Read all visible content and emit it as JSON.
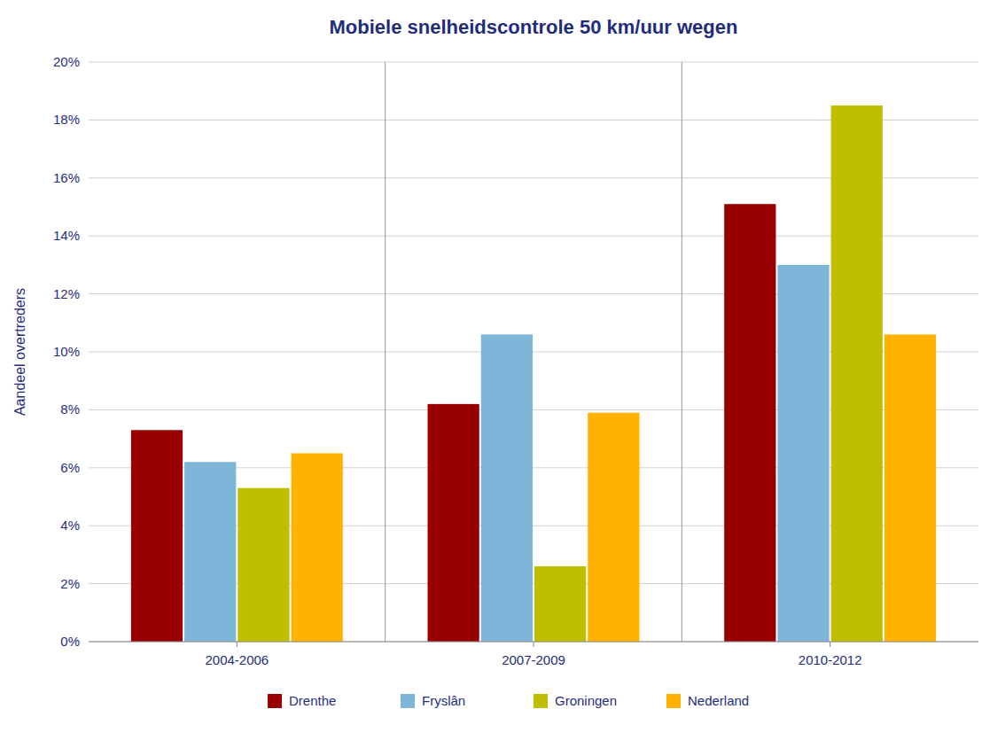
{
  "chart_data": {
    "type": "bar",
    "title": "Mobiele snelheidscontrole 50 km/uur wegen",
    "y_label": "Aandeel overtreders",
    "categories": [
      "2004-2006",
      "2007-2009",
      "2010-2012"
    ],
    "series": [
      {
        "name": "Drenthe",
        "color": "#990000",
        "values": [
          0.073,
          0.082,
          0.151
        ]
      },
      {
        "name": "Fryslân",
        "color": "#7EB6D9",
        "values": [
          0.062,
          0.106,
          0.13
        ]
      },
      {
        "name": "Groningen",
        "color": "#BFBF00",
        "values": [
          0.053,
          0.026,
          0.185
        ]
      },
      {
        "name": "Nederland",
        "color": "#FFB300",
        "values": [
          0.065,
          0.079,
          0.106
        ]
      }
    ],
    "ylim": [
      0,
      0.2
    ],
    "yticks": [
      {
        "value": 0.0,
        "label": "0%"
      },
      {
        "value": 0.02,
        "label": "2%"
      },
      {
        "value": 0.04,
        "label": "4%"
      },
      {
        "value": 0.06,
        "label": "6%"
      },
      {
        "value": 0.08,
        "label": "8%"
      },
      {
        "value": 0.1,
        "label": "10%"
      },
      {
        "value": 0.12,
        "label": "12%"
      },
      {
        "value": 0.14,
        "label": "14%"
      },
      {
        "value": 0.16,
        "label": "16%"
      },
      {
        "value": 0.18,
        "label": "18%"
      },
      {
        "value": 0.2,
        "label": "20%"
      }
    ],
    "grid": true,
    "legend": "bottom"
  }
}
